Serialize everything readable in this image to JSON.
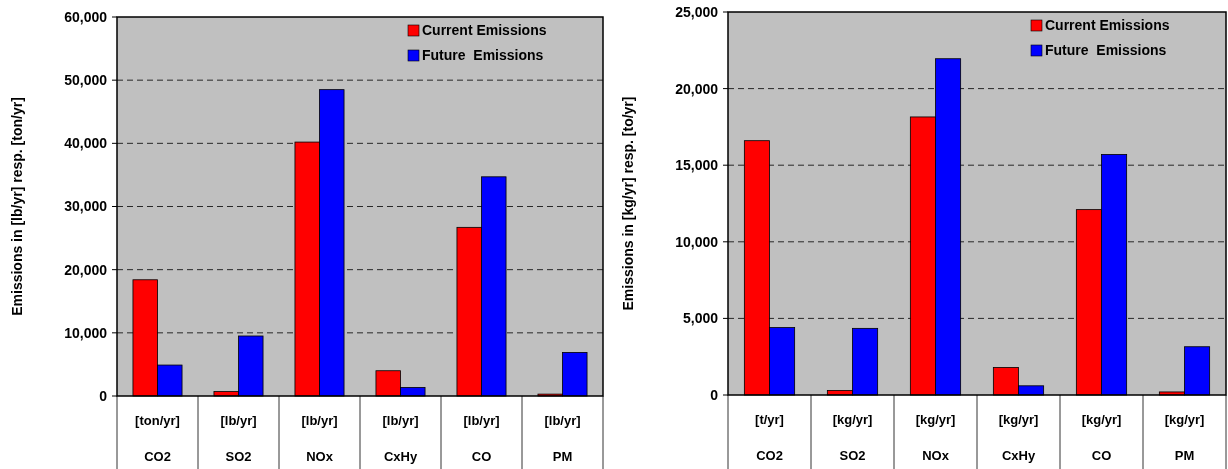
{
  "chart_data": [
    {
      "type": "bar",
      "ylabel": "Emissions in [lb/yr] resp. [ton/yr]",
      "categories": [
        "[ton/yr]\nCO2",
        "[lb/yr]\nSO2",
        "[lb/yr]\nNOx",
        "[lb/yr]\nCxHy",
        "[lb/yr]\nCO",
        "[lb/yr]\nPM"
      ],
      "series": [
        {
          "name": "Current Emissions",
          "color": "#ff0000",
          "values": [
            18400,
            700,
            40200,
            4000,
            26700,
            300
          ]
        },
        {
          "name": "Future  Emissions",
          "color": "#0000ff",
          "values": [
            4900,
            9500,
            48500,
            1350,
            34700,
            6900
          ]
        }
      ],
      "ylim": [
        0,
        60000
      ],
      "yticks": [
        {
          "value": 0,
          "label": "0"
        },
        {
          "value": 10000,
          "label": "10,000"
        },
        {
          "value": 20000,
          "label": "20,000"
        },
        {
          "value": 30000,
          "label": "30,000"
        },
        {
          "value": 40000,
          "label": "40,000"
        },
        {
          "value": 50000,
          "label": "50,000"
        },
        {
          "value": 60000,
          "label": "60,000"
        }
      ],
      "grid": "y",
      "legend": "top right"
    },
    {
      "type": "bar",
      "ylabel": "Emissions in [kg/yr] resp. [to/yr]",
      "categories": [
        "[t/yr]\nCO2",
        "[kg/yr]\nSO2",
        "[kg/yr]\nNOx",
        "[kg/yr]\nCxHy",
        "[kg/yr]\nCO",
        "[kg/yr]\nPM"
      ],
      "series": [
        {
          "name": "Current Emissions",
          "color": "#ff0000",
          "values": [
            16600,
            300,
            18150,
            1800,
            12100,
            200
          ]
        },
        {
          "name": "Future  Emissions",
          "color": "#0000ff",
          "values": [
            4400,
            4350,
            21950,
            600,
            15700,
            3150
          ]
        }
      ],
      "ylim": [
        0,
        25000
      ],
      "yticks": [
        {
          "value": 0,
          "label": "0"
        },
        {
          "value": 5000,
          "label": "5,000"
        },
        {
          "value": 10000,
          "label": "10,000"
        },
        {
          "value": 15000,
          "label": "15,000"
        },
        {
          "value": 20000,
          "label": "20,000"
        },
        {
          "value": 25000,
          "label": "25,000"
        }
      ],
      "grid": "y",
      "legend": "top right"
    }
  ]
}
